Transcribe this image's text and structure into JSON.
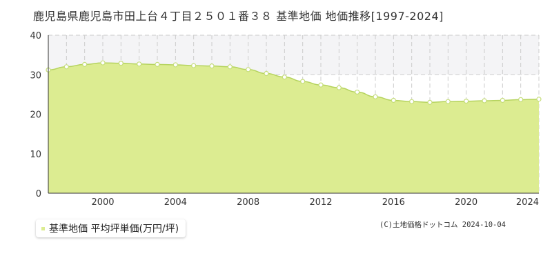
{
  "title": "鹿児島県鹿児島市田上台４丁目２５０１番３８ 基準地価 地価推移[1997-2024]",
  "legend": {
    "label": "基準地価 平均坪単価(万円/坪)"
  },
  "copyright": "(C)土地価格ドットコム 2024-10-04",
  "colors": {
    "fill": "#dcec91",
    "line": "#b5d35e",
    "point_stroke": "#c5dd7a",
    "grid": "#cccccc",
    "band": "#f4f4f6"
  },
  "chart_data": {
    "type": "area",
    "x": [
      1997,
      1998,
      1999,
      2000,
      2001,
      2002,
      2003,
      2004,
      2005,
      2006,
      2007,
      2008,
      2009,
      2010,
      2011,
      2012,
      2013,
      2014,
      2015,
      2016,
      2017,
      2018,
      2019,
      2020,
      2021,
      2022,
      2023,
      2024
    ],
    "series": [
      {
        "name": "基準地価 平均坪単価(万円/坪)",
        "values": [
          31.2,
          32.0,
          32.6,
          33.0,
          32.9,
          32.7,
          32.6,
          32.5,
          32.3,
          32.2,
          32.0,
          31.3,
          30.3,
          29.4,
          28.3,
          27.4,
          26.7,
          25.6,
          24.4,
          23.5,
          23.2,
          23.0,
          23.2,
          23.3,
          23.4,
          23.5,
          23.7,
          23.8
        ]
      }
    ],
    "xticks": [
      2000,
      2004,
      2008,
      2012,
      2016,
      2020,
      2024
    ],
    "yticks": [
      0,
      10,
      20,
      30,
      40
    ],
    "xlim": [
      1997,
      2024
    ],
    "ylim": [
      0,
      40
    ],
    "grid": true
  }
}
